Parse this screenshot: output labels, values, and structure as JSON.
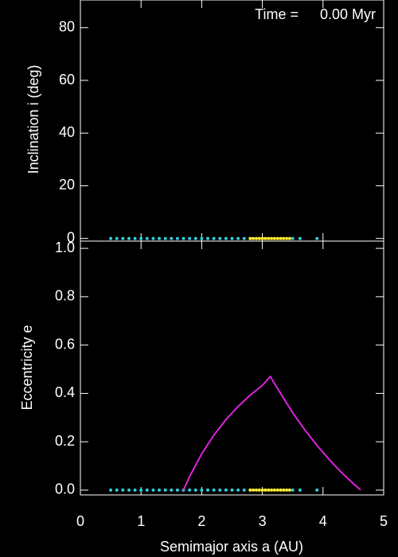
{
  "chart_data": [
    {
      "type": "scatter",
      "ylabel": "Inclination i (deg)",
      "annotations": [
        "Time =",
        "0.00 Myr"
      ],
      "xlim": [
        0,
        5
      ],
      "ylim": [
        -1,
        90.5
      ],
      "yticks": [
        0,
        20,
        40,
        60,
        80
      ],
      "series": [
        {
          "color": "#33ccdd",
          "x": [
            0.5,
            0.6,
            0.7,
            0.8,
            0.9,
            1.0,
            1.1,
            1.2,
            1.3,
            1.4,
            1.5,
            1.6,
            1.7,
            1.8,
            1.9,
            2.0,
            2.1,
            2.2,
            2.3,
            2.4,
            2.5,
            2.6,
            2.7,
            2.8,
            3.5,
            3.62,
            3.9
          ],
          "values": [
            0,
            0,
            0,
            0,
            0,
            0,
            0,
            0,
            0,
            0,
            0,
            0,
            0,
            0,
            0,
            0,
            0,
            0,
            0,
            0,
            0,
            0,
            0,
            0,
            0,
            0,
            0
          ]
        },
        {
          "color": "#ffee33",
          "x": [
            2.8,
            2.85,
            2.9,
            2.95,
            3.0,
            3.05,
            3.1,
            3.15,
            3.2,
            3.25,
            3.3,
            3.35,
            3.4,
            3.45
          ],
          "values": [
            0,
            0,
            0,
            0,
            0,
            0,
            0,
            0,
            0,
            0,
            0,
            0,
            0,
            0
          ]
        }
      ]
    },
    {
      "type": "scatter",
      "xlabel": "Semimajor axis a (AU)",
      "ylabel": "Eccentricity e",
      "xlim": [
        0,
        5
      ],
      "xticks": [
        0,
        1,
        2,
        3,
        4,
        5
      ],
      "ylim": [
        -0.02,
        1.03
      ],
      "yticks": [
        {
          "value": 0,
          "label": "0.0"
        },
        {
          "value": 0.2,
          "label": "0.2"
        },
        {
          "value": 0.4,
          "label": "0.4"
        },
        {
          "value": 0.6,
          "label": "0.6"
        },
        {
          "value": 0.8,
          "label": "0.8"
        },
        {
          "value": 1,
          "label": "1.0"
        }
      ],
      "series": [
        {
          "color": "#33ccdd",
          "x": [
            0.5,
            0.6,
            0.7,
            0.8,
            0.9,
            1.0,
            1.1,
            1.2,
            1.3,
            1.4,
            1.5,
            1.6,
            1.7,
            1.8,
            1.9,
            2.0,
            2.1,
            2.2,
            2.3,
            2.4,
            2.5,
            2.6,
            2.7,
            2.8,
            3.5,
            3.62,
            3.9
          ],
          "values": [
            0,
            0,
            0,
            0,
            0,
            0,
            0,
            0,
            0,
            0,
            0,
            0,
            0,
            0,
            0,
            0,
            0,
            0,
            0,
            0,
            0,
            0,
            0,
            0,
            0,
            0,
            0
          ]
        },
        {
          "color": "#ffee33",
          "x": [
            2.8,
            2.85,
            2.9,
            2.95,
            3.0,
            3.05,
            3.1,
            3.15,
            3.2,
            3.25,
            3.3,
            3.35,
            3.4,
            3.45
          ],
          "values": [
            0,
            0,
            0,
            0,
            0,
            0,
            0,
            0,
            0,
            0,
            0,
            0,
            0,
            0
          ]
        },
        {
          "type": "line",
          "color": "#dd22dd",
          "x": [
            1.7,
            1.8,
            2.0,
            2.2,
            2.4,
            2.6,
            2.8,
            3.0,
            3.13,
            3.3,
            3.5,
            3.7,
            3.9,
            4.1,
            4.3,
            4.5,
            4.62
          ],
          "values": [
            0,
            0.056,
            0.15,
            0.227,
            0.292,
            0.346,
            0.393,
            0.433,
            0.47,
            0.4,
            0.32,
            0.249,
            0.185,
            0.127,
            0.074,
            0.027,
            0
          ]
        }
      ]
    }
  ]
}
